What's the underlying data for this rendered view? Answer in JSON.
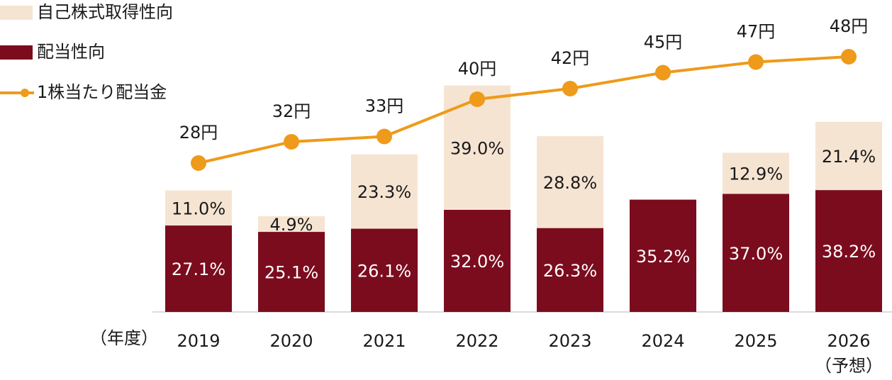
{
  "chart_data": {
    "type": "bar",
    "stacked": true,
    "categories": [
      "2019",
      "2020",
      "2021",
      "2022",
      "2023",
      "2024",
      "2025",
      "2026"
    ],
    "x_label": "（年度）",
    "forecast_note": "（予想）",
    "ylim": [
      0,
      80
    ],
    "y2lim": [
      0,
      48
    ],
    "series": [
      {
        "name": "配当性向",
        "type": "bar",
        "color": "#7b0c1e",
        "values": [
          27.1,
          25.1,
          26.1,
          32.0,
          26.3,
          35.2,
          37.0,
          38.2
        ],
        "value_labels": [
          "27.1%",
          "25.1%",
          "26.1%",
          "32.0%",
          "26.3%",
          "35.2%",
          "37.0%",
          "38.2%"
        ]
      },
      {
        "name": "自己株式取得性向",
        "type": "bar",
        "color": "#f6e4d2",
        "values": [
          11.0,
          4.9,
          23.3,
          39.0,
          28.8,
          null,
          12.9,
          21.4
        ],
        "value_labels": [
          "11.0%",
          "4.9%",
          "23.3%",
          "39.0%",
          "28.8%",
          null,
          "12.9%",
          "21.4%"
        ]
      },
      {
        "name": "1株当たり配当金",
        "type": "line",
        "axis": "y2",
        "color": "#ee9a1a",
        "values": [
          28,
          32,
          33,
          40,
          42,
          45,
          47,
          48
        ],
        "value_labels": [
          "28円",
          "32円",
          "33円",
          "40円",
          "42円",
          "45円",
          "47円",
          "48円"
        ]
      }
    ]
  }
}
